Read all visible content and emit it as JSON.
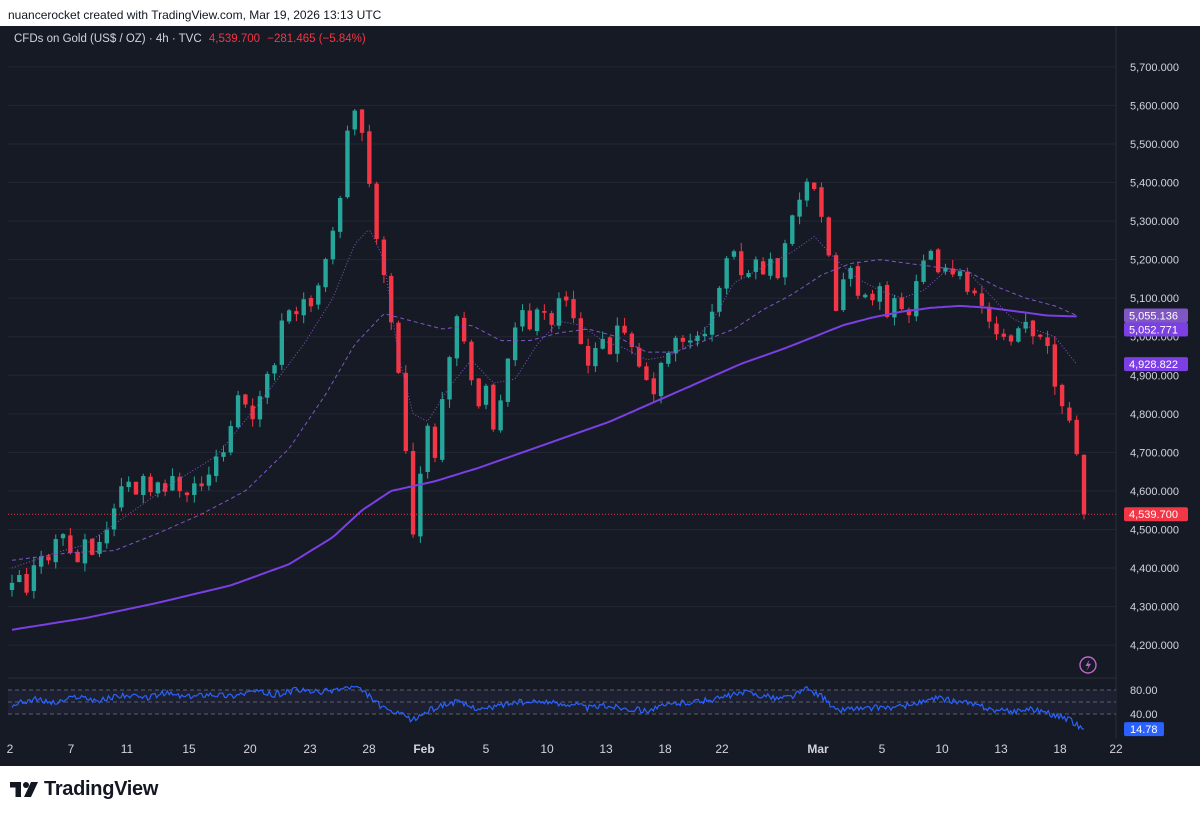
{
  "caption": "nuancerocket created with TradingView.com, Mar 19, 2026 13:13 UTC",
  "brand": "TradingView",
  "legend": {
    "symbol": "CFDs on Gold (US$ / OZ) · 4h · TVC",
    "price": "4,539.700",
    "change": "−281.465 (−5.84%)"
  },
  "colors": {
    "background": "#161a25",
    "up": "#26a69a",
    "down": "#f23645",
    "ma_long": "#7b3fe4",
    "ma_short": "#7e57c2",
    "rsi": "#2962ff",
    "grid": "#232733",
    "axis_text": "#d1d4dc"
  },
  "chart_data": {
    "type": "candlestick",
    "title": "CFDs on Gold (US$ / OZ) · 4h · TVC",
    "ylim": [
      4120,
      5780
    ],
    "y_ticks": [
      "5,700.000",
      "5,600.000",
      "5,500.000",
      "5,400.000",
      "5,300.000",
      "5,200.000",
      "5,100.000",
      "5,000.000",
      "4,900.000",
      "4,800.000",
      "4,700.000",
      "4,600.000",
      "4,500.000",
      "4,400.000",
      "4,300.000",
      "4,200.000"
    ],
    "y_tick_values": [
      5700,
      5600,
      5500,
      5400,
      5300,
      5200,
      5100,
      5000,
      4900,
      4800,
      4700,
      4600,
      4500,
      4400,
      4300,
      4200
    ],
    "x_ticks": [
      "2",
      "7",
      "11",
      "15",
      "20",
      "23",
      "28",
      "Feb",
      "5",
      "10",
      "13",
      "18",
      "22",
      "Mar",
      "5",
      "10",
      "13",
      "18",
      "22"
    ],
    "x_ticks_bold": [
      "Feb",
      "Mar"
    ],
    "close_path": [
      [
        0,
        4350
      ],
      [
        1,
        4380
      ],
      [
        2,
        4330
      ],
      [
        3,
        4400
      ],
      [
        4,
        4440
      ],
      [
        5,
        4430
      ],
      [
        6,
        4470
      ],
      [
        7,
        4490
      ],
      [
        8,
        4440
      ],
      [
        9,
        4420
      ],
      [
        10,
        4460
      ],
      [
        11,
        4440
      ],
      [
        12,
        4470
      ],
      [
        13,
        4500
      ],
      [
        14,
        4560
      ],
      [
        15,
        4610
      ],
      [
        16,
        4620
      ],
      [
        17,
        4600
      ],
      [
        18,
        4640
      ],
      [
        19,
        4610
      ],
      [
        20,
        4620
      ],
      [
        21,
        4590
      ],
      [
        22,
        4640
      ],
      [
        23,
        4610
      ],
      [
        24,
        4600
      ],
      [
        25,
        4620
      ],
      [
        26,
        4610
      ],
      [
        27,
        4650
      ],
      [
        28,
        4680
      ],
      [
        29,
        4700
      ],
      [
        30,
        4760
      ],
      [
        31,
        4860
      ],
      [
        32,
        4820
      ],
      [
        33,
        4790
      ],
      [
        34,
        4860
      ],
      [
        35,
        4900
      ],
      [
        36,
        4920
      ],
      [
        37,
        5050
      ],
      [
        38,
        5080
      ],
      [
        39,
        5060
      ],
      [
        40,
        5100
      ],
      [
        41,
        5070
      ],
      [
        42,
        5140
      ],
      [
        43,
        5210
      ],
      [
        44,
        5280
      ],
      [
        45,
        5350
      ],
      [
        46,
        5540
      ],
      [
        47,
        5590
      ],
      [
        48,
        5520
      ],
      [
        49,
        5400
      ],
      [
        50,
        5250
      ],
      [
        51,
        5150
      ],
      [
        52,
        5050
      ],
      [
        53,
        4900
      ],
      [
        54,
        4700
      ],
      [
        55,
        4500
      ],
      [
        56,
        4650
      ],
      [
        57,
        4760
      ],
      [
        58,
        4700
      ],
      [
        59,
        4850
      ],
      [
        60,
        4960
      ],
      [
        61,
        5050
      ],
      [
        62,
        4980
      ],
      [
        63,
        4900
      ],
      [
        64,
        4820
      ],
      [
        65,
        4860
      ],
      [
        66,
        4760
      ],
      [
        67,
        4840
      ],
      [
        68,
        4950
      ],
      [
        69,
        5010
      ],
      [
        70,
        5060
      ],
      [
        71,
        5020
      ],
      [
        72,
        5080
      ],
      [
        73,
        5060
      ],
      [
        74,
        5040
      ],
      [
        75,
        5090
      ],
      [
        76,
        5100
      ],
      [
        77,
        5060
      ],
      [
        78,
        4980
      ],
      [
        79,
        4920
      ],
      [
        80,
        4960
      ],
      [
        81,
        4980
      ],
      [
        82,
        4960
      ],
      [
        83,
        5040
      ],
      [
        84,
        5000
      ],
      [
        85,
        4960
      ],
      [
        86,
        4920
      ],
      [
        87,
        4880
      ],
      [
        88,
        4860
      ],
      [
        89,
        4920
      ],
      [
        90,
        4960
      ],
      [
        91,
        4990
      ],
      [
        92,
        4980
      ],
      [
        93,
        4990
      ],
      [
        94,
        5010
      ],
      [
        95,
        5000
      ],
      [
        96,
        5060
      ],
      [
        97,
        5130
      ],
      [
        98,
        5200
      ],
      [
        99,
        5220
      ],
      [
        100,
        5150
      ],
      [
        101,
        5180
      ],
      [
        102,
        5190
      ],
      [
        103,
        5170
      ],
      [
        104,
        5200
      ],
      [
        105,
        5160
      ],
      [
        106,
        5250
      ],
      [
        107,
        5300
      ],
      [
        108,
        5360
      ],
      [
        109,
        5400
      ],
      [
        110,
        5370
      ],
      [
        111,
        5300
      ],
      [
        112,
        5200
      ],
      [
        113,
        5080
      ],
      [
        114,
        5150
      ],
      [
        115,
        5170
      ],
      [
        116,
        5120
      ],
      [
        117,
        5100
      ],
      [
        118,
        5080
      ],
      [
        119,
        5130
      ],
      [
        120,
        5050
      ],
      [
        121,
        5110
      ],
      [
        122,
        5080
      ],
      [
        123,
        5060
      ],
      [
        124,
        5130
      ],
      [
        125,
        5190
      ],
      [
        126,
        5210
      ],
      [
        127,
        5180
      ],
      [
        128,
        5170
      ],
      [
        129,
        5150
      ],
      [
        130,
        5180
      ],
      [
        131,
        5130
      ],
      [
        132,
        5100
      ],
      [
        133,
        5070
      ],
      [
        134,
        5050
      ],
      [
        135,
        5000
      ],
      [
        136,
        4990
      ],
      [
        137,
        4980
      ],
      [
        138,
        5010
      ],
      [
        139,
        5030
      ],
      [
        140,
        5000
      ],
      [
        141,
        5010
      ],
      [
        142,
        4980
      ],
      [
        143,
        4880
      ],
      [
        144,
        4830
      ],
      [
        145,
        4790
      ],
      [
        146,
        4700
      ],
      [
        147,
        4539.7
      ]
    ],
    "ma_long_path": [
      [
        0,
        4240
      ],
      [
        10,
        4270
      ],
      [
        20,
        4310
      ],
      [
        30,
        4355
      ],
      [
        38,
        4410
      ],
      [
        44,
        4480
      ],
      [
        48,
        4550
      ],
      [
        52,
        4600
      ],
      [
        58,
        4625
      ],
      [
        64,
        4660
      ],
      [
        70,
        4700
      ],
      [
        76,
        4740
      ],
      [
        82,
        4780
      ],
      [
        88,
        4830
      ],
      [
        94,
        4880
      ],
      [
        100,
        4930
      ],
      [
        106,
        4970
      ],
      [
        110,
        5000
      ],
      [
        114,
        5030
      ],
      [
        118,
        5050
      ],
      [
        122,
        5065
      ],
      [
        126,
        5075
      ],
      [
        130,
        5080
      ],
      [
        134,
        5075
      ],
      [
        138,
        5065
      ],
      [
        142,
        5055
      ],
      [
        146,
        5052.771
      ]
    ],
    "ma_mid_path": [
      [
        0,
        4420
      ],
      [
        8,
        4440
      ],
      [
        14,
        4445
      ],
      [
        20,
        4490
      ],
      [
        26,
        4540
      ],
      [
        32,
        4600
      ],
      [
        38,
        4710
      ],
      [
        43,
        4850
      ],
      [
        47,
        4980
      ],
      [
        51,
        5060
      ],
      [
        55,
        5040
      ],
      [
        59,
        5020
      ],
      [
        63,
        5030
      ],
      [
        67,
        4990
      ],
      [
        71,
        4990
      ],
      [
        75,
        5010
      ],
      [
        79,
        5020
      ],
      [
        83,
        5000
      ],
      [
        87,
        4960
      ],
      [
        91,
        4960
      ],
      [
        95,
        4990
      ],
      [
        99,
        5020
      ],
      [
        103,
        5070
      ],
      [
        107,
        5110
      ],
      [
        111,
        5160
      ],
      [
        115,
        5190
      ],
      [
        119,
        5200
      ],
      [
        123,
        5190
      ],
      [
        127,
        5180
      ],
      [
        131,
        5170
      ],
      [
        135,
        5130
      ],
      [
        139,
        5100
      ],
      [
        143,
        5080
      ],
      [
        146,
        5055.136
      ]
    ],
    "ma_short_path": [
      [
        0,
        4400
      ],
      [
        6,
        4440
      ],
      [
        10,
        4460
      ],
      [
        16,
        4540
      ],
      [
        22,
        4620
      ],
      [
        28,
        4690
      ],
      [
        34,
        4830
      ],
      [
        40,
        4980
      ],
      [
        44,
        5100
      ],
      [
        47,
        5240
      ],
      [
        49,
        5280
      ],
      [
        51,
        5200
      ],
      [
        53,
        4950
      ],
      [
        55,
        4800
      ],
      [
        57,
        4780
      ],
      [
        60,
        4870
      ],
      [
        63,
        4940
      ],
      [
        66,
        4880
      ],
      [
        69,
        4890
      ],
      [
        72,
        4980
      ],
      [
        75,
        5040
      ],
      [
        78,
        5030
      ],
      [
        81,
        4990
      ],
      [
        84,
        4970
      ],
      [
        87,
        4940
      ],
      [
        90,
        4950
      ],
      [
        93,
        4980
      ],
      [
        96,
        5040
      ],
      [
        99,
        5140
      ],
      [
        103,
        5180
      ],
      [
        107,
        5220
      ],
      [
        110,
        5260
      ],
      [
        113,
        5200
      ],
      [
        116,
        5150
      ],
      [
        119,
        5120
      ],
      [
        122,
        5100
      ],
      [
        125,
        5120
      ],
      [
        128,
        5170
      ],
      [
        131,
        5170
      ],
      [
        134,
        5110
      ],
      [
        137,
        5050
      ],
      [
        140,
        5020
      ],
      [
        143,
        5000
      ],
      [
        146,
        4928.822
      ]
    ],
    "price_labels": [
      {
        "text": "5,055.136",
        "value": 5055.136,
        "color": "#7e57c2"
      },
      {
        "text": "5,052.771",
        "value": 5052.771,
        "color": "#7b3fe4"
      },
      {
        "text": "4,928.822",
        "value": 4928.822,
        "color": "#7b3fe4"
      },
      {
        "text": "4,539.700",
        "value": 4539.7,
        "color": "#f23645"
      }
    ],
    "last_price": 4539.7,
    "rsi": {
      "ylim": [
        0,
        100
      ],
      "upper": 80,
      "lower": 40,
      "middle": 60,
      "tick_labels": [
        "80.00",
        "40.00"
      ],
      "current_text": "14.78",
      "current": 14.78,
      "path": [
        [
          0,
          55
        ],
        [
          3,
          65
        ],
        [
          6,
          58
        ],
        [
          9,
          70
        ],
        [
          12,
          62
        ],
        [
          15,
          72
        ],
        [
          18,
          66
        ],
        [
          21,
          75
        ],
        [
          24,
          68
        ],
        [
          27,
          74
        ],
        [
          30,
          70
        ],
        [
          33,
          78
        ],
        [
          36,
          72
        ],
        [
          39,
          80
        ],
        [
          42,
          76
        ],
        [
          45,
          82
        ],
        [
          47,
          85
        ],
        [
          49,
          70
        ],
        [
          51,
          48
        ],
        [
          53,
          40
        ],
        [
          55,
          30
        ],
        [
          57,
          45
        ],
        [
          59,
          55
        ],
        [
          61,
          60
        ],
        [
          63,
          52
        ],
        [
          65,
          48
        ],
        [
          67,
          55
        ],
        [
          69,
          60
        ],
        [
          71,
          58
        ],
        [
          73,
          62
        ],
        [
          75,
          56
        ],
        [
          77,
          58
        ],
        [
          79,
          50
        ],
        [
          81,
          54
        ],
        [
          83,
          52
        ],
        [
          85,
          48
        ],
        [
          87,
          46
        ],
        [
          89,
          52
        ],
        [
          91,
          58
        ],
        [
          93,
          60
        ],
        [
          95,
          62
        ],
        [
          97,
          66
        ],
        [
          99,
          72
        ],
        [
          101,
          76
        ],
        [
          103,
          70
        ],
        [
          105,
          66
        ],
        [
          107,
          70
        ],
        [
          109,
          82
        ],
        [
          111,
          70
        ],
        [
          113,
          45
        ],
        [
          115,
          50
        ],
        [
          117,
          48
        ],
        [
          119,
          52
        ],
        [
          121,
          50
        ],
        [
          123,
          55
        ],
        [
          125,
          60
        ],
        [
          127,
          66
        ],
        [
          129,
          62
        ],
        [
          131,
          58
        ],
        [
          133,
          52
        ],
        [
          135,
          46
        ],
        [
          137,
          44
        ],
        [
          139,
          48
        ],
        [
          141,
          46
        ],
        [
          143,
          38
        ],
        [
          145,
          30
        ],
        [
          147,
          14.78
        ]
      ]
    }
  }
}
